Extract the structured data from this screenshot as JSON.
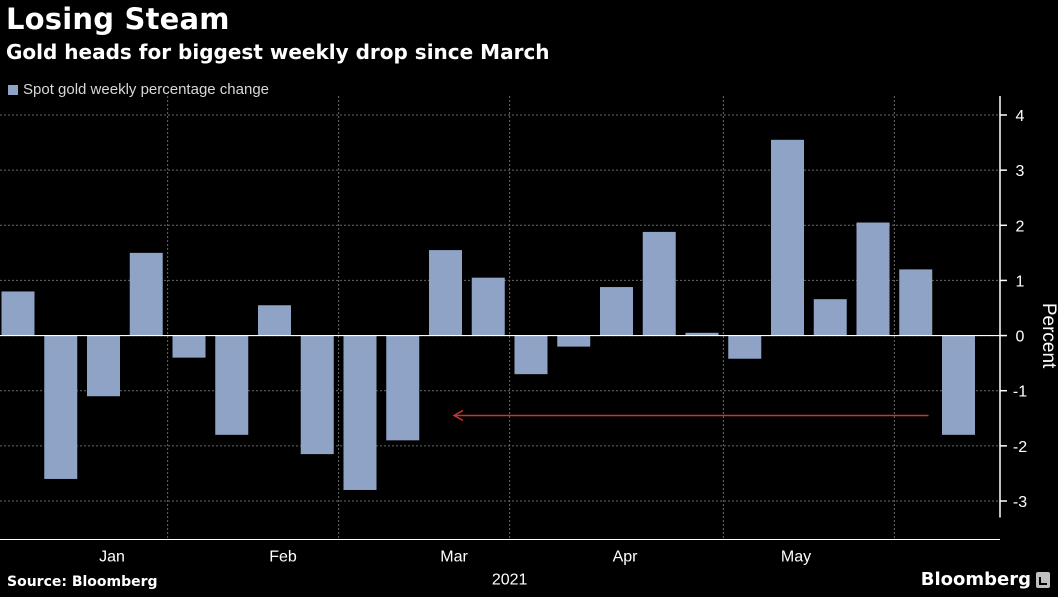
{
  "header": {
    "title": "Losing Steam",
    "subtitle": "Gold heads for biggest weekly drop since March"
  },
  "footer": {
    "source": "Source: Bloomberg",
    "brand": "Bloomberg"
  },
  "colors": {
    "background": "#000000",
    "bar": "#8ea3c6",
    "grid": "#6a6a6a",
    "axis": "#ffffff",
    "arrow": "#c0392b",
    "text": "#ffffff"
  },
  "chart_data": {
    "type": "bar",
    "title": "Losing Steam",
    "subtitle": "Gold heads for biggest weekly drop since March",
    "xlabel": "2021",
    "ylabel": "Percent",
    "ylim": [
      -3.3,
      4.2
    ],
    "yticks": [
      4,
      3,
      2,
      1,
      0,
      -1,
      -2,
      -3
    ],
    "grid": true,
    "legend": "top-left",
    "series": [
      {
        "name": "Spot gold weekly percentage change",
        "values": [
          0.8,
          -2.6,
          -1.1,
          1.5,
          -0.4,
          -1.8,
          0.55,
          -2.15,
          -2.8,
          -1.9,
          1.55,
          1.05,
          -0.7,
          -0.2,
          0.88,
          1.88,
          0.05,
          -0.42,
          3.55,
          0.66,
          2.05,
          1.2,
          -1.8
        ]
      }
    ],
    "month_labels": [
      "Jan",
      "Feb",
      "Mar",
      "Apr",
      "May"
    ],
    "month_label_weeks": [
      2.2,
      6.2,
      10.2,
      14.2,
      18.2
    ],
    "month_separators_after_week": [
      3.5,
      7.5,
      11.5,
      16.5,
      20.5
    ],
    "year_label": "2021",
    "annotations": [
      {
        "type": "arrow",
        "from_week": 21.3,
        "to_week": 10.2,
        "y": -1.45,
        "direction": "left"
      }
    ]
  }
}
